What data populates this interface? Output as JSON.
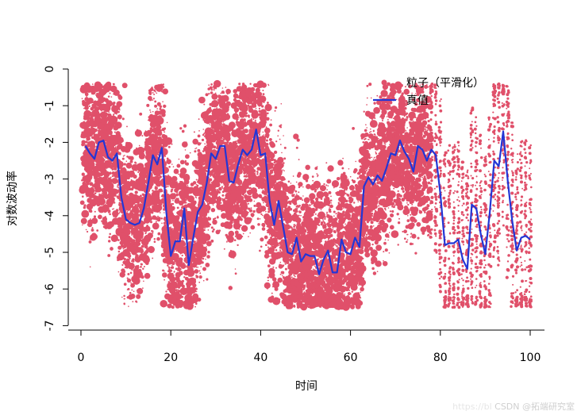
{
  "chart_data": {
    "type": "scatter",
    "xlabel": "时间",
    "ylabel": "对数波动率",
    "xlim": [
      0,
      100
    ],
    "ylim": [
      -7,
      0
    ],
    "x_ticks": [
      0,
      20,
      40,
      60,
      80,
      100
    ],
    "y_ticks": [
      0,
      -1,
      -2,
      -3,
      -4,
      -5,
      -6,
      -7
    ],
    "legend_placement": "top-right",
    "grid": false,
    "colors": {
      "particles": "#e0506a",
      "truth": "#2236d6",
      "axis": "#000000"
    },
    "series": [
      {
        "name": "粒子（平滑化）",
        "kind": "points",
        "note_spread_y": [
          [
            1,
            1.5
          ],
          [
            2,
            1.4
          ],
          [
            3,
            1.3
          ],
          [
            4,
            1.2
          ],
          [
            5,
            1.4
          ],
          [
            6,
            1.3
          ],
          [
            7,
            1.2
          ],
          [
            8,
            1.3
          ],
          [
            9,
            1.1
          ],
          [
            10,
            1.2
          ],
          [
            11,
            1.3
          ],
          [
            12,
            1.2
          ],
          [
            13,
            1.3
          ],
          [
            14,
            1.2
          ],
          [
            15,
            1.1
          ],
          [
            16,
            1.2
          ],
          [
            17,
            1.3
          ],
          [
            18,
            1.1
          ],
          [
            19,
            1.2
          ],
          [
            20,
            1.1
          ]
        ]
      },
      {
        "name": "真值",
        "kind": "line",
        "x": [
          1,
          2,
          3,
          4,
          5,
          6,
          7,
          8,
          9,
          10,
          11,
          12,
          13,
          14,
          15,
          16,
          17,
          18,
          19,
          20,
          21,
          22,
          23,
          24,
          25,
          26,
          27,
          28,
          29,
          30,
          31,
          32,
          33,
          34,
          35,
          36,
          37,
          38,
          39,
          40,
          41,
          42,
          43,
          44,
          45,
          46,
          47,
          48,
          49,
          50,
          51,
          52,
          53,
          54,
          55,
          56,
          57,
          58,
          59,
          60,
          61,
          62,
          63,
          64,
          65,
          66,
          67,
          68,
          69,
          70,
          71,
          72,
          73,
          74,
          75,
          76,
          77,
          78,
          79,
          80,
          81,
          82,
          83,
          84,
          85,
          86,
          87,
          88,
          89,
          90,
          91,
          92,
          93,
          94,
          95,
          96,
          97,
          98,
          99,
          100
        ],
        "y": [
          -2.1,
          -2.3,
          -2.45,
          -2.0,
          -1.95,
          -2.4,
          -2.5,
          -2.3,
          -3.5,
          -4.1,
          -4.2,
          -4.25,
          -4.2,
          -3.8,
          -3.1,
          -2.35,
          -2.6,
          -2.15,
          -3.9,
          -5.1,
          -4.7,
          -4.7,
          -3.8,
          -5.35,
          -4.6,
          -3.9,
          -3.7,
          -3.1,
          -2.3,
          -2.45,
          -2.1,
          -2.1,
          -3.05,
          -3.1,
          -2.6,
          -2.2,
          -2.35,
          -2.2,
          -1.65,
          -2.35,
          -2.3,
          -3.6,
          -4.25,
          -3.6,
          -4.3,
          -5.0,
          -5.05,
          -4.6,
          -5.25,
          -5.05,
          -5.1,
          -5.1,
          -5.6,
          -5.2,
          -4.95,
          -5.55,
          -5.55,
          -4.65,
          -5.0,
          -5.05,
          -4.6,
          -4.85,
          -3.2,
          -2.95,
          -3.15,
          -2.9,
          -3.05,
          -2.7,
          -2.3,
          -2.35,
          -1.95,
          -2.25,
          -2.45,
          -2.8,
          -2.1,
          -2.2,
          -2.5,
          -2.2,
          -2.35,
          -3.4,
          -4.8,
          -4.75,
          -4.75,
          -4.65,
          -5.2,
          -5.45,
          -3.7,
          -3.8,
          -4.5,
          -5.05,
          -3.9,
          -2.5,
          -2.65,
          -1.7,
          -3.05,
          -4.15,
          -4.95,
          -4.6,
          -4.55,
          -4.65
        ]
      }
    ]
  },
  "watermark": {
    "faint_text": "https://bl",
    "text": "CSDN @拓端研究室"
  }
}
